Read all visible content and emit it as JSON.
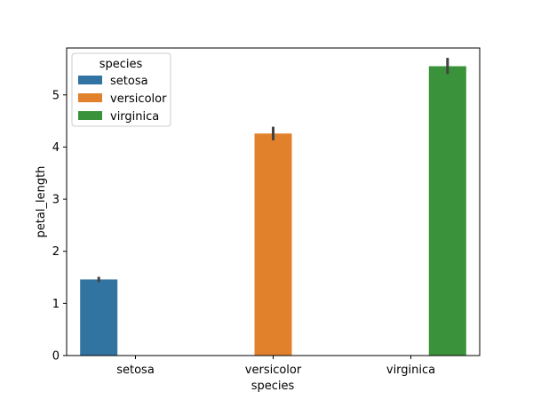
{
  "chart_data": {
    "type": "bar",
    "xlabel": "species",
    "ylabel": "petal_length",
    "categories": [
      "setosa",
      "versicolor",
      "virginica"
    ],
    "ylim": [
      0,
      5.9
    ],
    "yticks": [
      "0",
      "1",
      "2",
      "3",
      "4",
      "5"
    ],
    "legend": {
      "title": "species",
      "placement": "top-left"
    },
    "series": [
      {
        "name": "setosa",
        "color": "#3274a1",
        "values": [
          1.46,
          null,
          null
        ],
        "ci": [
          [
            1.41,
            1.51
          ],
          null,
          null
        ]
      },
      {
        "name": "versicolor",
        "color": "#e1812c",
        "values": [
          null,
          4.26,
          null
        ],
        "ci": [
          null,
          [
            4.13,
            4.39
          ],
          null
        ]
      },
      {
        "name": "virginica",
        "color": "#3a923a",
        "values": [
          null,
          null,
          5.55
        ],
        "ci": [
          null,
          null,
          [
            5.4,
            5.71
          ]
        ]
      }
    ],
    "grid": false
  }
}
